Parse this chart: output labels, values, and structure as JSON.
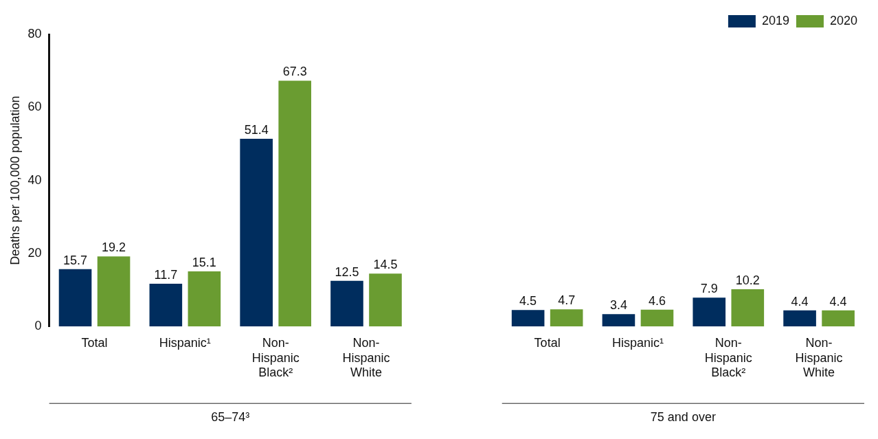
{
  "chart_data": {
    "type": "bar",
    "ylabel": "Deaths per 100,000 population",
    "categories": [
      "Total",
      "Hispanic¹",
      "Non-Hispanic Black²",
      "Non-Hispanic White",
      null,
      "Total",
      "Hispanic¹",
      "Non-Hispanic Black²",
      "Non-Hispanic White"
    ],
    "series": [
      {
        "name": "2019",
        "color": "#002d5e",
        "values": [
          15.7,
          11.7,
          51.4,
          12.5,
          null,
          4.5,
          3.4,
          7.9,
          4.4
        ]
      },
      {
        "name": "2020",
        "color": "#6a9c31",
        "values": [
          19.2,
          15.1,
          67.3,
          14.5,
          null,
          4.7,
          4.6,
          10.2,
          4.4
        ]
      }
    ],
    "ylim": [
      0,
      80
    ],
    "yticks": [
      0,
      20,
      40,
      60,
      80
    ],
    "grid": false,
    "legend": "top right",
    "data_labels": true,
    "annotations": [
      "65–74³",
      "75 and over"
    ]
  }
}
